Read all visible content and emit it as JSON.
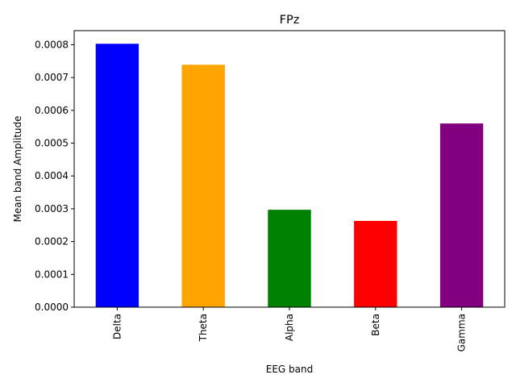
{
  "chart_data": {
    "type": "bar",
    "title": "FPz",
    "xlabel": "EEG band",
    "ylabel": "Mean band Amplitude",
    "categories": [
      "Delta",
      "Theta",
      "Alpha",
      "Beta",
      "Gamma"
    ],
    "values": [
      0.000803,
      0.000739,
      0.000297,
      0.000263,
      0.00056
    ],
    "colors": [
      "#0000ff",
      "#ffa500",
      "#008000",
      "#ff0000",
      "#800080"
    ],
    "ylim": [
      0,
      0.000843
    ],
    "yticks": [
      "0.0000",
      "0.0001",
      "0.0002",
      "0.0003",
      "0.0004",
      "0.0005",
      "0.0006",
      "0.0007",
      "0.0008"
    ],
    "ytick_values": [
      0,
      0.0001,
      0.0002,
      0.0003,
      0.0004,
      0.0005,
      0.0006,
      0.0007,
      0.0008
    ],
    "grid": false,
    "xtick_rotation": "vertical"
  }
}
